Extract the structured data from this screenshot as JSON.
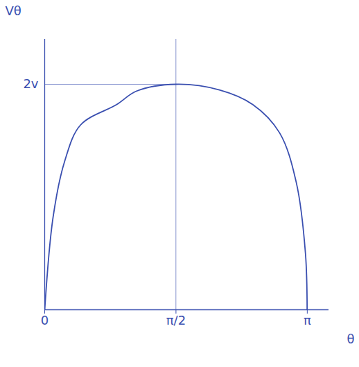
{
  "chart_data": {
    "type": "line",
    "x_label": "θ",
    "y_label": "Vθ",
    "x": [
      0,
      0.1,
      0.24,
      0.43,
      0.86,
      1.1,
      1.57,
      2.09,
      2.49,
      2.81,
      3.01,
      3.12,
      3.14
    ],
    "values": [
      0,
      0.82,
      1.32,
      1.64,
      1.82,
      1.94,
      2.0,
      1.95,
      1.82,
      1.57,
      1.13,
      0.5,
      0
    ],
    "color": "#3a4fb0",
    "xlim": [
      0,
      3.4
    ],
    "ylim": [
      0,
      2.4
    ],
    "xticks": [
      0,
      {
        "value": 1.5708,
        "label": "π/2"
      },
      {
        "value": 3.1416,
        "label": "π"
      }
    ],
    "yticks": [
      {
        "value": 2,
        "label": "2v"
      }
    ]
  }
}
